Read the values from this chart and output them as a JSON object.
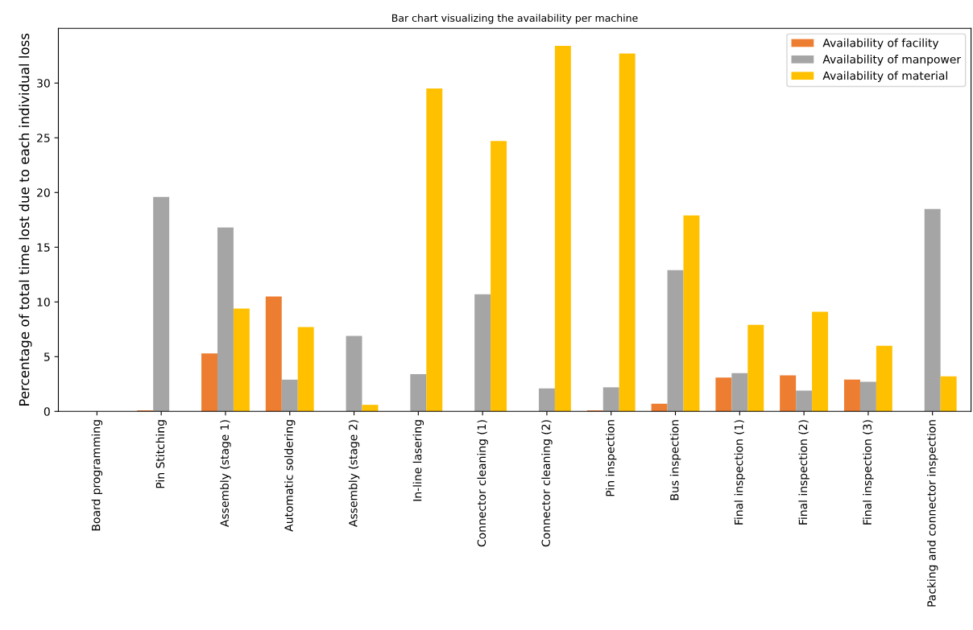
{
  "chart_data": {
    "type": "bar",
    "title": "Bar chart visualizing the availability per machine",
    "ylabel": "Percentage of total time lost due to each individual loss",
    "categories": [
      "Board programming",
      "Pin Stitching",
      "Assembly (stage 1)",
      "Automatic soldering",
      "Assembly (stage 2)",
      "In-line lasering",
      "Connector cleaning (1)",
      "Connector cleaning (2)",
      "Pin inspection",
      "Bus inspection",
      "Final inspection (1)",
      "Final inspection (2)",
      "Final inspection (3)",
      "Packing and connector inspection"
    ],
    "series": [
      {
        "name": "Availability of facility",
        "color": "#ed7d31",
        "values": [
          0,
          0.1,
          5.3,
          10.5,
          0,
          0,
          0,
          0,
          0.1,
          0.7,
          3.1,
          3.3,
          2.9,
          0
        ]
      },
      {
        "name": "Availability of manpower",
        "color": "#a5a5a5",
        "values": [
          0,
          19.6,
          16.8,
          2.9,
          6.9,
          3.4,
          10.7,
          2.1,
          2.2,
          12.9,
          3.5,
          1.9,
          2.7,
          18.5
        ]
      },
      {
        "name": "Availability of material",
        "color": "#ffc000",
        "values": [
          0,
          0,
          9.4,
          7.7,
          0.6,
          29.5,
          24.7,
          33.4,
          32.7,
          17.9,
          7.9,
          9.1,
          6.0,
          3.2
        ]
      }
    ],
    "ylim": [
      0,
      35
    ],
    "yticks": [
      0,
      5,
      10,
      15,
      20,
      25,
      30
    ],
    "grid": false,
    "legend": "top right"
  }
}
